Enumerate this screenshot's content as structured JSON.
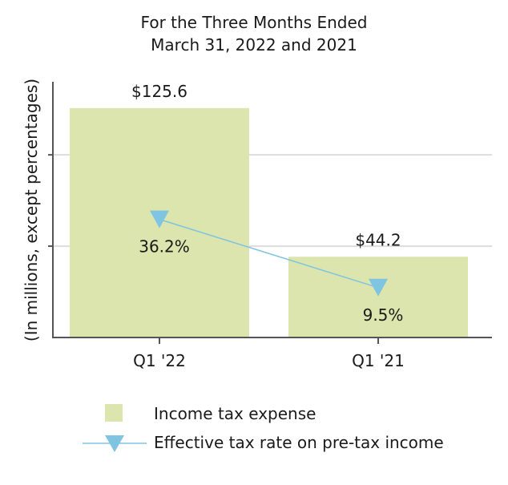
{
  "chart_data": {
    "type": "bar",
    "title": "For the Three Months Ended",
    "subtitle": "March 31, 2022 and 2021",
    "ylabel": "(In millions, except percentages)",
    "categories": [
      "Q1 '22",
      "Q1 '21"
    ],
    "series": [
      {
        "name": "Income tax expense",
        "type": "bar",
        "values": [
          125.6,
          44.2
        ],
        "labels": [
          "$125.6",
          "$44.2"
        ],
        "color": "#dce5ad"
      },
      {
        "name": "Effective tax rate on pre-tax income",
        "type": "line",
        "values": [
          36.2,
          9.5
        ],
        "labels": [
          "36.2%",
          "9.5%"
        ],
        "color": "#7fc4e0"
      }
    ],
    "ylim": [
      0,
      140
    ],
    "y2lim": [
      -10,
      90
    ],
    "grid": true,
    "legend": "bottom",
    "colors": {
      "axis": "#555555",
      "grid": "#dddddd"
    }
  }
}
